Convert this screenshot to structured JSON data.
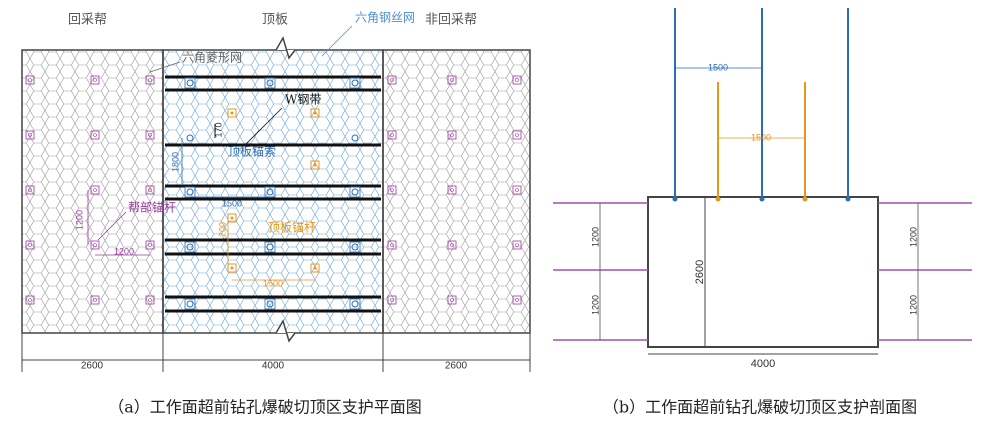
{
  "plan_view": {
    "mining_side": "回采帮",
    "roof": "顶板",
    "hex_wire_mesh": "六角钢丝网",
    "non_mining_side": "非回采帮",
    "diamond_mesh": "六角菱形网",
    "w_steel_strip": "W钢带",
    "roof_cable": "顶板锚索",
    "rib_bolt": "帮部锚杆",
    "roof_bolt": "顶板锚杆",
    "dimensions": [
      "170",
      "1800",
      "1500",
      "1200",
      "1200",
      "1200",
      "1500",
      "2600",
      "4000",
      "2600"
    ],
    "caption": "（a）工作面超前钻孔爆破切顶区支护平面图"
  },
  "section_view": {
    "dimensions": [
      "1500",
      "1500",
      "1200",
      "1200",
      "1200",
      "1200",
      "2600",
      "4000"
    ],
    "caption": "（b）工作面超前钻孔爆破切顶区支护剖面图"
  }
}
